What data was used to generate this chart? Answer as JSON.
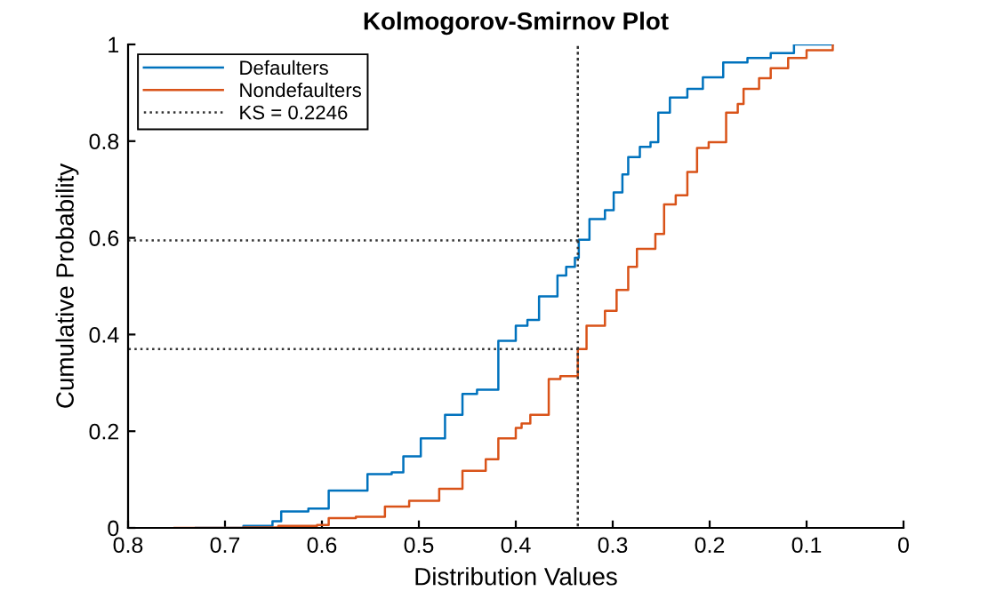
{
  "chart_data": {
    "type": "step",
    "title": "Kolmogorov-Smirnov Plot",
    "xlabel": "Distribution Values",
    "ylabel": "Cumulative Probability",
    "xlim": [
      0.8,
      0
    ],
    "ylim": [
      0,
      1
    ],
    "xticks": [
      0.8,
      0.7,
      0.6,
      0.5,
      0.4,
      0.3,
      0.2,
      0.1,
      0
    ],
    "yticks": [
      0,
      0.2,
      0.4,
      0.6,
      0.8,
      1
    ],
    "grid": false,
    "legend": "top left",
    "series": [
      {
        "name": "Defaulters",
        "color": "#0072bd",
        "x": [
          0.73,
          0.681,
          0.651,
          0.642,
          0.614,
          0.593,
          0.553,
          0.528,
          0.516,
          0.498,
          0.473,
          0.455,
          0.44,
          0.418,
          0.4,
          0.388,
          0.376,
          0.357,
          0.348,
          0.339,
          0.335,
          0.324,
          0.308,
          0.299,
          0.29,
          0.284,
          0.272,
          0.261,
          0.253,
          0.241,
          0.223,
          0.207,
          0.186,
          0.161,
          0.137,
          0.113,
          0.073
        ],
        "values": [
          0,
          0.004,
          0.014,
          0.034,
          0.04,
          0.077,
          0.111,
          0.115,
          0.148,
          0.185,
          0.234,
          0.277,
          0.286,
          0.387,
          0.418,
          0.43,
          0.479,
          0.522,
          0.54,
          0.559,
          0.596,
          0.639,
          0.657,
          0.694,
          0.731,
          0.767,
          0.788,
          0.798,
          0.859,
          0.89,
          0.908,
          0.932,
          0.963,
          0.972,
          0.982,
          1.0,
          1.0
        ]
      },
      {
        "name": "Nondefaulters",
        "color": "#d95319",
        "x": [
          0.752,
          0.681,
          0.645,
          0.605,
          0.593,
          0.565,
          0.535,
          0.51,
          0.479,
          0.455,
          0.431,
          0.418,
          0.4,
          0.394,
          0.385,
          0.366,
          0.354,
          0.336,
          0.327,
          0.308,
          0.296,
          0.284,
          0.275,
          0.256,
          0.247,
          0.235,
          0.223,
          0.213,
          0.201,
          0.183,
          0.171,
          0.165,
          0.149,
          0.137,
          0.119,
          0.1,
          0.073
        ],
        "values": [
          0,
          0.001,
          0.004,
          0.006,
          0.02,
          0.023,
          0.044,
          0.056,
          0.081,
          0.118,
          0.142,
          0.185,
          0.207,
          0.216,
          0.234,
          0.308,
          0.314,
          0.37,
          0.418,
          0.449,
          0.492,
          0.54,
          0.577,
          0.608,
          0.669,
          0.688,
          0.736,
          0.786,
          0.798,
          0.859,
          0.877,
          0.908,
          0.93,
          0.951,
          0.972,
          0.988,
          1.0
        ]
      },
      {
        "name": "KS = 0.2246",
        "type": "line",
        "line_style": "dotted",
        "color": "#333333",
        "x": [
          0.8,
          0.336,
          0.336,
          0.336,
          0.336,
          0.8
        ],
        "values": [
          0.5946,
          0.5946,
          1,
          0,
          0.37,
          0.37
        ]
      }
    ]
  }
}
